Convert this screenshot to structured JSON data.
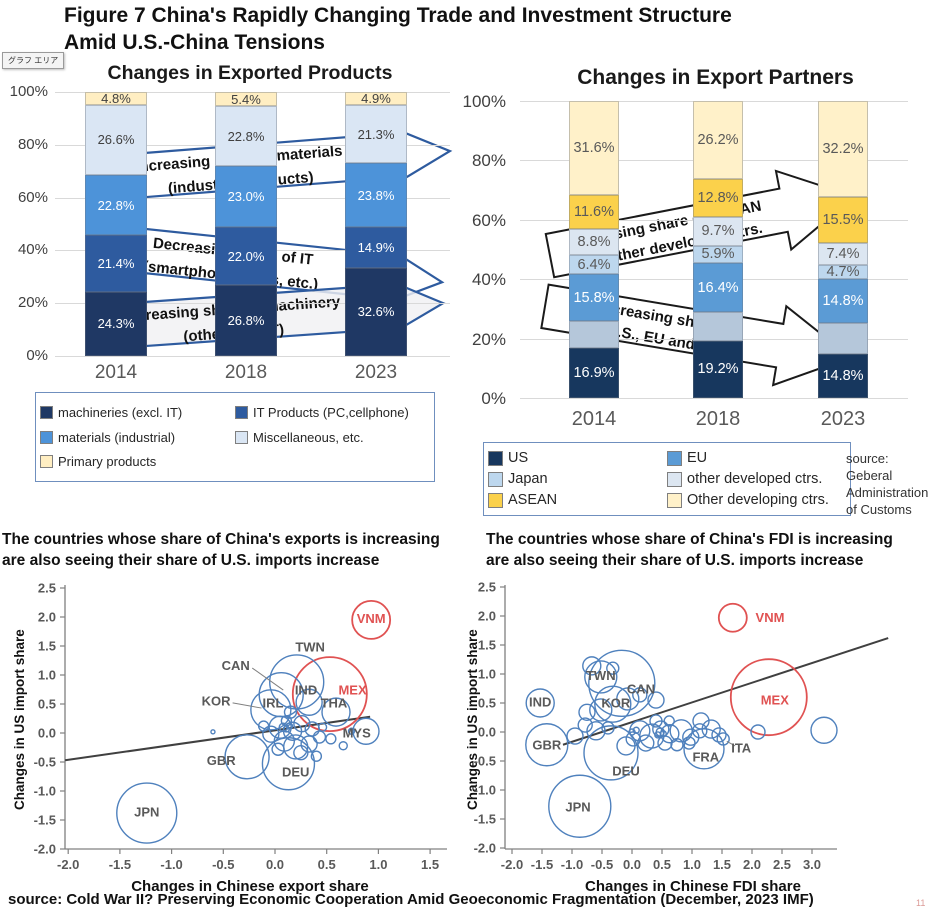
{
  "page": {
    "title_line1": "Figure 7 China's Rapidly Changing Trade and Investment Structure",
    "title_line2": "Amid U.S.-China Tensions",
    "plot_area_tooltip": "グラフ エリア",
    "bottom_source": "source: Cold War II? Preserving Economic Cooperation Amid Geoeconomic Fragmentation (December, 2023 IMF)",
    "page_number": "11"
  },
  "chart_data": [
    {
      "id": "exported_products",
      "type": "bar",
      "stacked": true,
      "title": "Changes in Exported Products",
      "y_ticks": [
        "100%",
        "80%",
        "60%",
        "40%",
        "20%",
        "0%"
      ],
      "categories": [
        "2014",
        "2018",
        "2023"
      ],
      "series": [
        {
          "name": "machineries (excl. IT)",
          "color": "#1f3864",
          "label_color": "#ffffff",
          "values": [
            24.3,
            26.8,
            32.6
          ],
          "labels": [
            "24.3%",
            "26.8%",
            "32.6%"
          ]
        },
        {
          "name": "IT Products (PC,cellphone)",
          "color": "#2e5b9f",
          "label_color": "#ffffff",
          "values": [
            21.4,
            22.0,
            14.9
          ],
          "labels": [
            "21.4%",
            "22.0%",
            "14.9%"
          ]
        },
        {
          "name": "materials (industrial)",
          "color": "#4d93d9",
          "label_color": "#ffffff",
          "values": [
            22.8,
            23.0,
            23.8
          ],
          "labels": [
            "22.8%",
            "23.0%",
            "23.8%"
          ]
        },
        {
          "name": "Miscellaneous, etc.",
          "color": "#dae6f4",
          "label_color": "#404040",
          "values": [
            26.6,
            22.8,
            21.3
          ],
          "labels": [
            "26.6%",
            "22.8%",
            "21.3%"
          ]
        },
        {
          "name": "Primary products",
          "color": "#ffeec2",
          "label_color": "#404040",
          "values": [
            4.8,
            5.4,
            4.9
          ],
          "labels": [
            "4.8%",
            "5.4%",
            "4.9%"
          ]
        }
      ],
      "legend_order": [
        "machineries (excl. IT)",
        "IT Products (PC,cellphone)",
        "materials (industrial)",
        "Miscellaneous, etc.",
        "Primary products"
      ],
      "arrows": [
        {
          "line1": "Increasing share of materials",
          "line2": "(industrial products)"
        },
        {
          "line1": "Decreasing share of IT",
          "line2": "(smartphones, PCs, etc.)"
        },
        {
          "line1": "Increasing share of machinery",
          "line2": "(other than IT)"
        }
      ]
    },
    {
      "id": "export_partners",
      "type": "bar",
      "stacked": true,
      "title": "Changes in Export Partners",
      "y_ticks": [
        "100%",
        "80%",
        "60%",
        "40%",
        "20%",
        "0%"
      ],
      "categories": [
        "2014",
        "2018",
        "2023"
      ],
      "series": [
        {
          "name": "US",
          "color": "#17375e",
          "label_color": "#ffffff",
          "values": [
            16.9,
            19.2,
            14.8
          ],
          "labels": [
            "16.9%",
            "19.2%",
            "14.8%"
          ]
        },
        {
          "name": "",
          "color": "#b5c7da",
          "label_color": "#595959",
          "values": [
            8.9,
            9.8,
            10.6
          ],
          "labels": [
            "",
            "",
            ""
          ]
        },
        {
          "name": "EU",
          "color": "#5b9bd5",
          "label_color": "#ffffff",
          "values": [
            15.8,
            16.4,
            14.8
          ],
          "labels": [
            "15.8%",
            "16.4%",
            "14.8%"
          ]
        },
        {
          "name": "Japan",
          "color": "#bdd7ee",
          "label_color": "#595959",
          "values": [
            6.4,
            5.9,
            4.7
          ],
          "labels": [
            "6.4%",
            "5.9%",
            "4.7%"
          ]
        },
        {
          "name": "other developed ctrs.",
          "color": "#dce6f1",
          "label_color": "#595959",
          "values": [
            8.8,
            9.7,
            7.4
          ],
          "labels": [
            "8.8%",
            "9.7%",
            "7.4%"
          ]
        },
        {
          "name": "ASEAN",
          "color": "#fbd14b",
          "label_color": "#595959",
          "values": [
            11.6,
            12.8,
            15.5
          ],
          "labels": [
            "11.6%",
            "12.8%",
            "15.5%"
          ]
        },
        {
          "name": "Other developing ctrs.",
          "color": "#fff1c9",
          "label_color": "#595959",
          "values": [
            31.6,
            26.2,
            32.2
          ],
          "labels": [
            "31.6%",
            "26.2%",
            "32.2%"
          ]
        }
      ],
      "legend_order": [
        "US",
        "EU",
        "Japan",
        "other developed ctrs.",
        "ASEAN",
        "Other developing ctrs."
      ],
      "arrows": [
        {
          "line1": "increasing share of ASEAN",
          "line2": "and other developing ctrs."
        },
        {
          "line1": "decreasing share of",
          "line2": "the U.S., EU and Japan"
        }
      ],
      "source_note": [
        "source: Geberal",
        "Administration",
        "of Customs"
      ]
    },
    {
      "id": "export_scatter",
      "type": "scatter",
      "title_line1": "The countries whose share of China's exports is increasing",
      "title_line2": "are also seeing their share of U.S. imports increase",
      "xlabel": "Changes in Chinese export share",
      "ylabel": "Changes in US import share",
      "xlim": [
        -2.0,
        1.5
      ],
      "ylim": [
        -2.0,
        2.5
      ],
      "x_ticks": [
        "-2.0",
        "-1.5",
        "-1.0",
        "-0.5",
        "0.0",
        "0.5",
        "1.0",
        "1.5"
      ],
      "y_ticks": [
        "2.5",
        "2.0",
        "1.5",
        "1.0",
        "0.5",
        "0.0",
        "-0.5",
        "-1.0",
        "-1.5",
        "-2.0"
      ],
      "trend": {
        "x1": -2.03,
        "y1": -0.47,
        "x2": 0.92,
        "y2": 0.28
      },
      "circles": [
        {
          "x": 0.93,
          "y": 1.95,
          "r": 19,
          "c": "r"
        },
        {
          "x": 0.53,
          "y": 0.67,
          "r": 37,
          "c": "r"
        },
        {
          "x": 0.21,
          "y": 0.88,
          "r": 27,
          "c": "b"
        },
        {
          "x": 0.06,
          "y": 0.66,
          "r": 22,
          "c": "b"
        },
        {
          "x": -0.04,
          "y": 0.4,
          "r": 20,
          "c": "b"
        },
        {
          "x": 0.33,
          "y": 0.53,
          "r": 13,
          "c": "b"
        },
        {
          "x": 0.59,
          "y": 0.36,
          "r": 14,
          "c": "b"
        },
        {
          "x": 0.88,
          "y": 0.03,
          "r": 13,
          "c": "b"
        },
        {
          "x": -0.27,
          "y": -0.41,
          "r": 22,
          "c": "b"
        },
        {
          "x": 0.13,
          "y": -0.53,
          "r": 26,
          "c": "b"
        },
        {
          "x": -1.24,
          "y": -1.38,
          "r": 30,
          "c": "b"
        },
        {
          "x": 0.05,
          "y": 0.1,
          "r": 11,
          "c": "b"
        },
        {
          "x": 0.17,
          "y": 0.03,
          "r": 9,
          "c": "b"
        },
        {
          "x": 0.26,
          "y": 0.16,
          "r": 8,
          "c": "b"
        },
        {
          "x": 0.36,
          "y": 0.07,
          "r": 7,
          "c": "b"
        },
        {
          "x": -0.04,
          "y": -0.02,
          "r": 8,
          "c": "b"
        },
        {
          "x": 0.09,
          "y": -0.14,
          "r": 10,
          "c": "b"
        },
        {
          "x": 0.2,
          "y": -0.24,
          "r": 12,
          "c": "b"
        },
        {
          "x": 0.33,
          "y": -0.19,
          "r": 8,
          "c": "b"
        },
        {
          "x": 0.43,
          "y": -0.07,
          "r": 6,
          "c": "b"
        },
        {
          "x": -0.11,
          "y": 0.12,
          "r": 5,
          "c": "b"
        },
        {
          "x": 0.11,
          "y": 0.21,
          "r": 5,
          "c": "b"
        },
        {
          "x": 0.03,
          "y": -0.28,
          "r": 6,
          "c": "b"
        },
        {
          "x": 0.25,
          "y": -0.34,
          "r": 7,
          "c": "b"
        },
        {
          "x": 0.4,
          "y": -0.4,
          "r": 5,
          "c": "b"
        },
        {
          "x": 0.15,
          "y": 0.36,
          "r": 6,
          "c": "b"
        },
        {
          "x": 0.46,
          "y": 0.1,
          "r": 4,
          "c": "b"
        },
        {
          "x": 0.54,
          "y": -0.1,
          "r": 5,
          "c": "b"
        },
        {
          "x": 0.66,
          "y": -0.22,
          "r": 4,
          "c": "b"
        },
        {
          "x": 0.74,
          "y": 0.03,
          "r": 3,
          "c": "b"
        },
        {
          "x": 0.08,
          "y": 0.1,
          "r": 4,
          "c": "b"
        },
        {
          "x": 0.11,
          "y": 0.07,
          "r": 3,
          "c": "b"
        },
        {
          "x": 0.14,
          "y": 0.12,
          "r": 3,
          "c": "b"
        },
        {
          "x": -0.6,
          "y": 0.02,
          "r": 2,
          "c": "b"
        }
      ],
      "labels": [
        {
          "t": "VNM",
          "x": 0.93,
          "y": 1.97,
          "c": "r"
        },
        {
          "t": "MEX",
          "x": 0.75,
          "y": 0.74,
          "c": "r"
        },
        {
          "t": "TWN",
          "x": 0.34,
          "y": 1.48,
          "c": "g"
        },
        {
          "t": "CAN",
          "x": -0.38,
          "y": 1.16,
          "c": "g"
        },
        {
          "t": "KOR",
          "x": -0.57,
          "y": 0.55,
          "c": "g"
        },
        {
          "t": "IRL",
          "x": -0.02,
          "y": 0.52,
          "c": "g"
        },
        {
          "t": "IND",
          "x": 0.3,
          "y": 0.74,
          "c": "g"
        },
        {
          "t": "THA",
          "x": 0.57,
          "y": 0.52,
          "c": "g"
        },
        {
          "t": "MYS",
          "x": 0.79,
          "y": 0.0,
          "c": "g"
        },
        {
          "t": "GBR",
          "x": -0.52,
          "y": -0.47,
          "c": "g"
        },
        {
          "t": "DEU",
          "x": 0.2,
          "y": -0.67,
          "c": "g"
        },
        {
          "t": "JPN",
          "x": -1.24,
          "y": -1.36,
          "c": "g"
        }
      ],
      "leaders": [
        {
          "x1": -0.22,
          "y1": 1.12,
          "x2": 0.08,
          "y2": 0.74
        },
        {
          "x1": -0.41,
          "y1": 0.52,
          "x2": -0.13,
          "y2": 0.43
        }
      ]
    },
    {
      "id": "fdi_scatter",
      "type": "scatter",
      "title_line1": "The countries whose share of China's FDI is increasing",
      "title_line2": "are also seeing their share of U.S. imports increase",
      "xlabel": "Changes in Chinese FDI share",
      "ylabel": "Changes in US import share",
      "xlim": [
        -2.0,
        3.0
      ],
      "ylim": [
        -2.0,
        2.5
      ],
      "x_ticks": [
        "-2.0",
        "-1.5",
        "-1.0",
        "-0.5",
        "0.0",
        "0.5",
        "1.0",
        "1.5",
        "2.0",
        "2.5",
        "3.0"
      ],
      "y_ticks": [
        "2.5",
        "2.0",
        "1.5",
        "1.0",
        "0.5",
        "0.0",
        "-0.5",
        "-1.0",
        "-1.5",
        "-2.0"
      ],
      "trend": {
        "x1": -1.15,
        "y1": -0.22,
        "x2": 4.27,
        "y2": 1.62
      },
      "circles": [
        {
          "x": 1.68,
          "y": 1.97,
          "r": 14,
          "c": "r"
        },
        {
          "x": 2.28,
          "y": 0.6,
          "r": 38,
          "c": "r"
        },
        {
          "x": -0.52,
          "y": 0.95,
          "r": 16,
          "c": "b"
        },
        {
          "x": -0.67,
          "y": 1.14,
          "r": 9,
          "c": "b"
        },
        {
          "x": -1.53,
          "y": 0.5,
          "r": 14,
          "c": "b"
        },
        {
          "x": -0.17,
          "y": 0.84,
          "r": 33,
          "c": "b"
        },
        {
          "x": -0.32,
          "y": 0.48,
          "r": 18,
          "c": "b"
        },
        {
          "x": -0.07,
          "y": 0.57,
          "r": 11,
          "c": "b"
        },
        {
          "x": -0.52,
          "y": 0.38,
          "r": 11,
          "c": "b"
        },
        {
          "x": -0.75,
          "y": 0.34,
          "r": 8,
          "c": "b"
        },
        {
          "x": -1.42,
          "y": -0.22,
          "r": 21,
          "c": "b"
        },
        {
          "x": -0.35,
          "y": -0.36,
          "r": 27,
          "c": "b"
        },
        {
          "x": 1.2,
          "y": -0.29,
          "r": 20,
          "c": "b"
        },
        {
          "x": 1.52,
          "y": -0.12,
          "r": 6,
          "c": "b"
        },
        {
          "x": -0.87,
          "y": -1.28,
          "r": 31,
          "c": "b"
        },
        {
          "x": 2.1,
          "y": 0.0,
          "r": 7,
          "c": "b"
        },
        {
          "x": 3.2,
          "y": 0.03,
          "r": 13,
          "c": "b"
        },
        {
          "x": 0.13,
          "y": 0.02,
          "r": 10,
          "c": "b"
        },
        {
          "x": 0.33,
          "y": -0.07,
          "r": 12,
          "c": "b"
        },
        {
          "x": 0.48,
          "y": 0.05,
          "r": 8,
          "c": "b"
        },
        {
          "x": 0.63,
          "y": -0.03,
          "r": 9,
          "c": "b"
        },
        {
          "x": 0.82,
          "y": 0.02,
          "r": 11,
          "c": "b"
        },
        {
          "x": 0.98,
          "y": -0.09,
          "r": 8,
          "c": "b"
        },
        {
          "x": 1.13,
          "y": 0.02,
          "r": 7,
          "c": "b"
        },
        {
          "x": 0.23,
          "y": -0.19,
          "r": 8,
          "c": "b"
        },
        {
          "x": 0.02,
          "y": -0.12,
          "r": 7,
          "c": "b"
        },
        {
          "x": -0.1,
          "y": -0.24,
          "r": 9,
          "c": "b"
        },
        {
          "x": 0.55,
          "y": -0.19,
          "r": 7,
          "c": "b"
        },
        {
          "x": 0.75,
          "y": -0.22,
          "r": 6,
          "c": "b"
        },
        {
          "x": 0.95,
          "y": -0.19,
          "r": 6,
          "c": "b"
        },
        {
          "x": 0.4,
          "y": 0.19,
          "r": 6,
          "c": "b"
        },
        {
          "x": 0.62,
          "y": 0.19,
          "r": 5,
          "c": "b"
        },
        {
          "x": 1.15,
          "y": 0.19,
          "r": 8,
          "c": "b"
        },
        {
          "x": 1.32,
          "y": 0.05,
          "r": 9,
          "c": "b"
        },
        {
          "x": 1.45,
          "y": -0.05,
          "r": 7,
          "c": "b"
        },
        {
          "x": -0.6,
          "y": 0.02,
          "r": 9,
          "c": "b"
        },
        {
          "x": -0.78,
          "y": 0.12,
          "r": 7,
          "c": "b"
        },
        {
          "x": -0.95,
          "y": -0.07,
          "r": 8,
          "c": "b"
        },
        {
          "x": -0.4,
          "y": 0.07,
          "r": 6,
          "c": "b"
        },
        {
          "x": 0.13,
          "y": 0.64,
          "r": 7,
          "c": "b"
        },
        {
          "x": 0.4,
          "y": 0.55,
          "r": 8,
          "c": "b"
        },
        {
          "x": -0.32,
          "y": 1.1,
          "r": 6,
          "c": "b"
        },
        {
          "x": 0.47,
          "y": 0.0,
          "r": 4,
          "c": "b"
        },
        {
          "x": 0.52,
          "y": -0.03,
          "r": 3,
          "c": "b"
        },
        {
          "x": 0.43,
          "y": -0.05,
          "r": 3,
          "c": "b"
        },
        {
          "x": 0.0,
          "y": 0.0,
          "r": 3,
          "c": "b"
        },
        {
          "x": 0.07,
          "y": 0.03,
          "r": 3,
          "c": "b"
        }
      ],
      "labels": [
        {
          "t": "VNM",
          "x": 2.3,
          "y": 1.97,
          "c": "r"
        },
        {
          "t": "MEX",
          "x": 2.38,
          "y": 0.55,
          "c": "r"
        },
        {
          "t": "TWN",
          "x": -0.52,
          "y": 0.97,
          "c": "g"
        },
        {
          "t": "IND",
          "x": -1.53,
          "y": 0.52,
          "c": "g"
        },
        {
          "t": "CAN",
          "x": 0.15,
          "y": 0.74,
          "c": "g"
        },
        {
          "t": "KOR",
          "x": -0.27,
          "y": 0.5,
          "c": "g"
        },
        {
          "t": "GBR",
          "x": -1.42,
          "y": -0.22,
          "c": "g"
        },
        {
          "t": "DEU",
          "x": -0.1,
          "y": -0.67,
          "c": "g"
        },
        {
          "t": "FRA",
          "x": 1.23,
          "y": -0.43,
          "c": "g"
        },
        {
          "t": "ITA",
          "x": 1.82,
          "y": -0.28,
          "c": "g"
        },
        {
          "t": "JPN",
          "x": -0.9,
          "y": -1.29,
          "c": "g"
        }
      ],
      "leaders": [
        {
          "x1": 1.72,
          "y1": -0.24,
          "x2": 1.58,
          "y2": -0.16
        }
      ]
    }
  ]
}
